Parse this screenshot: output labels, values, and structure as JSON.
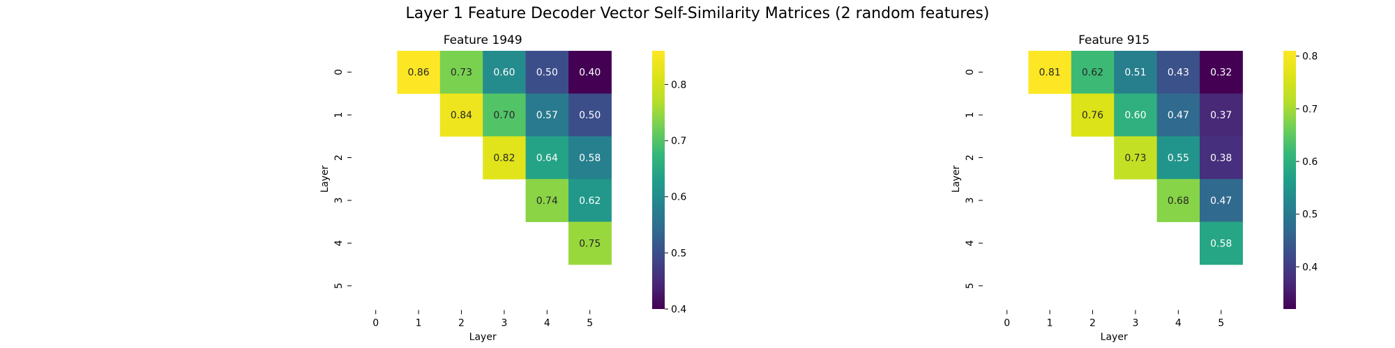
{
  "figure": {
    "suptitle": "Layer 1 Feature Decoder Vector Self-Similarity Matrices (2 random features)"
  },
  "chart_data": [
    {
      "type": "heatmap",
      "title": "Feature 1949",
      "xlabel": "Layer",
      "ylabel": "Layer",
      "x_ticks": [
        "0",
        "1",
        "2",
        "3",
        "4",
        "5"
      ],
      "y_ticks": [
        "0",
        "1",
        "2",
        "3",
        "4",
        "5"
      ],
      "colormap": "viridis",
      "colorbar": {
        "min": 0.4,
        "max": 0.86,
        "ticks": [
          "0.4",
          "0.5",
          "0.6",
          "0.7",
          "0.8"
        ]
      },
      "matrix": [
        [
          null,
          0.86,
          0.73,
          0.6,
          0.5,
          0.4
        ],
        [
          null,
          null,
          0.84,
          0.7,
          0.57,
          0.5
        ],
        [
          null,
          null,
          null,
          0.82,
          0.64,
          0.58
        ],
        [
          null,
          null,
          null,
          null,
          0.74,
          0.62
        ],
        [
          null,
          null,
          null,
          null,
          null,
          0.75
        ],
        [
          null,
          null,
          null,
          null,
          null,
          null
        ]
      ]
    },
    {
      "type": "heatmap",
      "title": "Feature 915",
      "xlabel": "Layer",
      "ylabel": "Layer",
      "x_ticks": [
        "0",
        "1",
        "2",
        "3",
        "4",
        "5"
      ],
      "y_ticks": [
        "0",
        "1",
        "2",
        "3",
        "4",
        "5"
      ],
      "colormap": "viridis",
      "colorbar": {
        "min": 0.32,
        "max": 0.81,
        "ticks": [
          "0.4",
          "0.5",
          "0.6",
          "0.7",
          "0.8"
        ]
      },
      "matrix": [
        [
          null,
          0.81,
          0.62,
          0.51,
          0.43,
          0.32
        ],
        [
          null,
          null,
          0.76,
          0.6,
          0.47,
          0.37
        ],
        [
          null,
          null,
          null,
          0.73,
          0.55,
          0.38
        ],
        [
          null,
          null,
          null,
          null,
          0.68,
          0.47
        ],
        [
          null,
          null,
          null,
          null,
          null,
          0.58
        ],
        [
          null,
          null,
          null,
          null,
          null,
          null
        ]
      ]
    }
  ]
}
